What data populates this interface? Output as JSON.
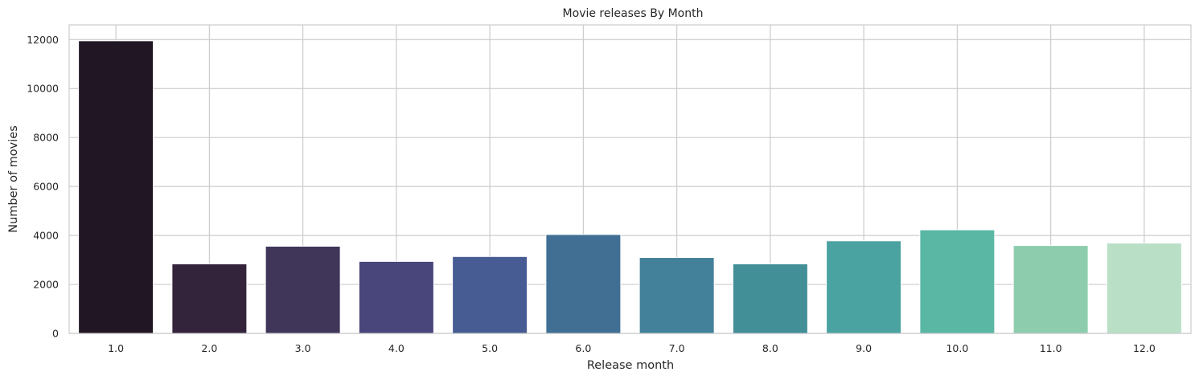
{
  "chart_data": {
    "type": "bar",
    "title": "Movie releases By Month",
    "xlabel": "Release month",
    "ylabel": "Number of movies",
    "categories": [
      "1.0",
      "2.0",
      "3.0",
      "4.0",
      "5.0",
      "6.0",
      "7.0",
      "8.0",
      "9.0",
      "10.0",
      "11.0",
      "12.0"
    ],
    "values": [
      11950,
      2840,
      3560,
      2940,
      3140,
      4040,
      3100,
      2840,
      3780,
      4230,
      3590,
      3690
    ],
    "ylim": [
      0,
      12600
    ],
    "yticks": [
      0,
      2000,
      4000,
      6000,
      8000,
      10000,
      12000
    ],
    "grid": true,
    "legend": "none",
    "colors": [
      "#211623",
      "#33233b",
      "#403659",
      "#48467a",
      "#465c93",
      "#416f94",
      "#43819a",
      "#428f97",
      "#4aa3a0",
      "#5ab7a4",
      "#8dcdae",
      "#b9dfc6"
    ]
  }
}
